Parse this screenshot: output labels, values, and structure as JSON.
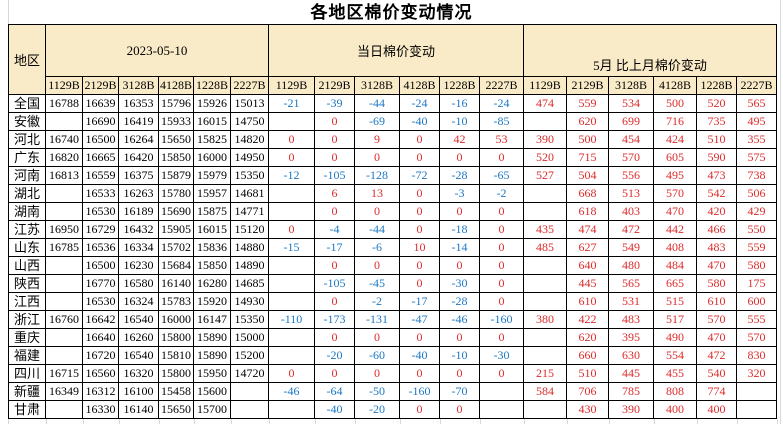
{
  "title": "各地区棉价变动情况",
  "colors": {
    "header_bg": "#FAEBC8",
    "negative_text": "#1C77C3",
    "positive_text": "#DD2B2B",
    "price_text": "#000000",
    "table_border": "#000000",
    "gridline": "#D9D9D9"
  },
  "chart_data": {
    "type": "table",
    "title": "各地区棉价变动情况",
    "region_column_header": "地区",
    "column_groups": [
      {
        "label": "2023-05-10",
        "key": "prices"
      },
      {
        "label": "当日棉价变动",
        "key": "daily_change"
      },
      {
        "label": "5月 比上月棉价变动",
        "key": "monthly_change"
      }
    ],
    "grade_columns": [
      "1129B",
      "2129B",
      "3128B",
      "4128B",
      "1228B",
      "2227B"
    ],
    "rows": [
      {
        "region": "全国",
        "prices": [
          16788,
          16639,
          16353,
          15796,
          15926,
          15013
        ],
        "daily_change": [
          -21,
          -39,
          -44,
          -24,
          -16,
          -24
        ],
        "monthly_change": [
          474,
          559,
          534,
          500,
          520,
          565
        ]
      },
      {
        "region": "安徽",
        "prices": [
          null,
          16690,
          16419,
          15933,
          16015,
          14750
        ],
        "daily_change": [
          null,
          0,
          -69,
          -40,
          -10,
          -85
        ],
        "monthly_change": [
          null,
          620,
          699,
          716,
          735,
          495
        ]
      },
      {
        "region": "河北",
        "prices": [
          16740,
          16500,
          16264,
          15650,
          15825,
          14820
        ],
        "daily_change": [
          0,
          0,
          9,
          0,
          42,
          53
        ],
        "monthly_change": [
          390,
          500,
          454,
          424,
          510,
          355
        ]
      },
      {
        "region": "广东",
        "prices": [
          16820,
          16665,
          16420,
          15850,
          16000,
          14950
        ],
        "daily_change": [
          0,
          0,
          0,
          0,
          0,
          0
        ],
        "monthly_change": [
          520,
          715,
          570,
          605,
          590,
          575
        ]
      },
      {
        "region": "河南",
        "prices": [
          16813,
          16559,
          16375,
          15879,
          15979,
          15350
        ],
        "daily_change": [
          -12,
          -105,
          -128,
          -72,
          -28,
          -65
        ],
        "monthly_change": [
          527,
          504,
          556,
          495,
          473,
          738
        ]
      },
      {
        "region": "湖北",
        "prices": [
          null,
          16533,
          16263,
          15780,
          15957,
          14681
        ],
        "daily_change": [
          null,
          6,
          13,
          0,
          -3,
          -2
        ],
        "monthly_change": [
          null,
          668,
          513,
          570,
          542,
          506
        ]
      },
      {
        "region": "湖南",
        "prices": [
          null,
          16530,
          16189,
          15690,
          15875,
          14771
        ],
        "daily_change": [
          null,
          0,
          0,
          0,
          0,
          0
        ],
        "monthly_change": [
          null,
          618,
          403,
          470,
          420,
          429
        ]
      },
      {
        "region": "江苏",
        "prices": [
          16950,
          16729,
          16432,
          15905,
          16015,
          15120
        ],
        "daily_change": [
          0,
          -4,
          -44,
          0,
          -18,
          0
        ],
        "monthly_change": [
          435,
          474,
          472,
          442,
          466,
          550
        ]
      },
      {
        "region": "山东",
        "prices": [
          16785,
          16536,
          16334,
          15702,
          15836,
          14880
        ],
        "daily_change": [
          -15,
          -17,
          -6,
          10,
          -14,
          0
        ],
        "monthly_change": [
          485,
          627,
          549,
          408,
          483,
          559
        ]
      },
      {
        "region": "山西",
        "prices": [
          null,
          16500,
          16230,
          15684,
          15850,
          14890
        ],
        "daily_change": [
          null,
          0,
          0,
          0,
          0,
          0
        ],
        "monthly_change": [
          null,
          640,
          480,
          484,
          470,
          580
        ]
      },
      {
        "region": "陕西",
        "prices": [
          null,
          16770,
          16580,
          16140,
          16280,
          14685
        ],
        "daily_change": [
          null,
          -105,
          -45,
          0,
          -30,
          0
        ],
        "monthly_change": [
          null,
          445,
          565,
          665,
          580,
          175
        ]
      },
      {
        "region": "江西",
        "prices": [
          null,
          16530,
          16324,
          15783,
          15920,
          14930
        ],
        "daily_change": [
          null,
          0,
          -2,
          -17,
          -28,
          0
        ],
        "monthly_change": [
          null,
          610,
          531,
          515,
          610,
          600
        ]
      },
      {
        "region": "浙江",
        "prices": [
          16760,
          16642,
          16540,
          16000,
          16147,
          15350
        ],
        "daily_change": [
          -110,
          -173,
          -131,
          -47,
          -46,
          -160
        ],
        "monthly_change": [
          380,
          422,
          483,
          517,
          570,
          555
        ]
      },
      {
        "region": "重庆",
        "prices": [
          null,
          16640,
          16260,
          15800,
          15890,
          15000
        ],
        "daily_change": [
          null,
          0,
          0,
          0,
          0,
          0
        ],
        "monthly_change": [
          null,
          620,
          395,
          490,
          470,
          570
        ]
      },
      {
        "region": "福建",
        "prices": [
          null,
          16720,
          16540,
          15810,
          15890,
          15200
        ],
        "daily_change": [
          null,
          -20,
          -60,
          -40,
          -10,
          -30
        ],
        "monthly_change": [
          null,
          660,
          630,
          554,
          472,
          830
        ]
      },
      {
        "region": "四川",
        "prices": [
          16715,
          16560,
          16320,
          15800,
          15950,
          14720
        ],
        "daily_change": [
          0,
          0,
          0,
          0,
          0,
          0
        ],
        "monthly_change": [
          215,
          510,
          445,
          455,
          540,
          320
        ]
      },
      {
        "region": "新疆",
        "prices": [
          16349,
          16312,
          16100,
          15458,
          15600,
          null
        ],
        "daily_change": [
          -46,
          -64,
          -50,
          -160,
          -70,
          null
        ],
        "monthly_change": [
          584,
          706,
          785,
          808,
          774,
          null
        ]
      },
      {
        "region": "甘肃",
        "prices": [
          null,
          16330,
          16140,
          15650,
          15700,
          null
        ],
        "daily_change": [
          null,
          -40,
          -20,
          0,
          0,
          null
        ],
        "monthly_change": [
          null,
          430,
          390,
          400,
          400,
          null
        ]
      }
    ]
  }
}
